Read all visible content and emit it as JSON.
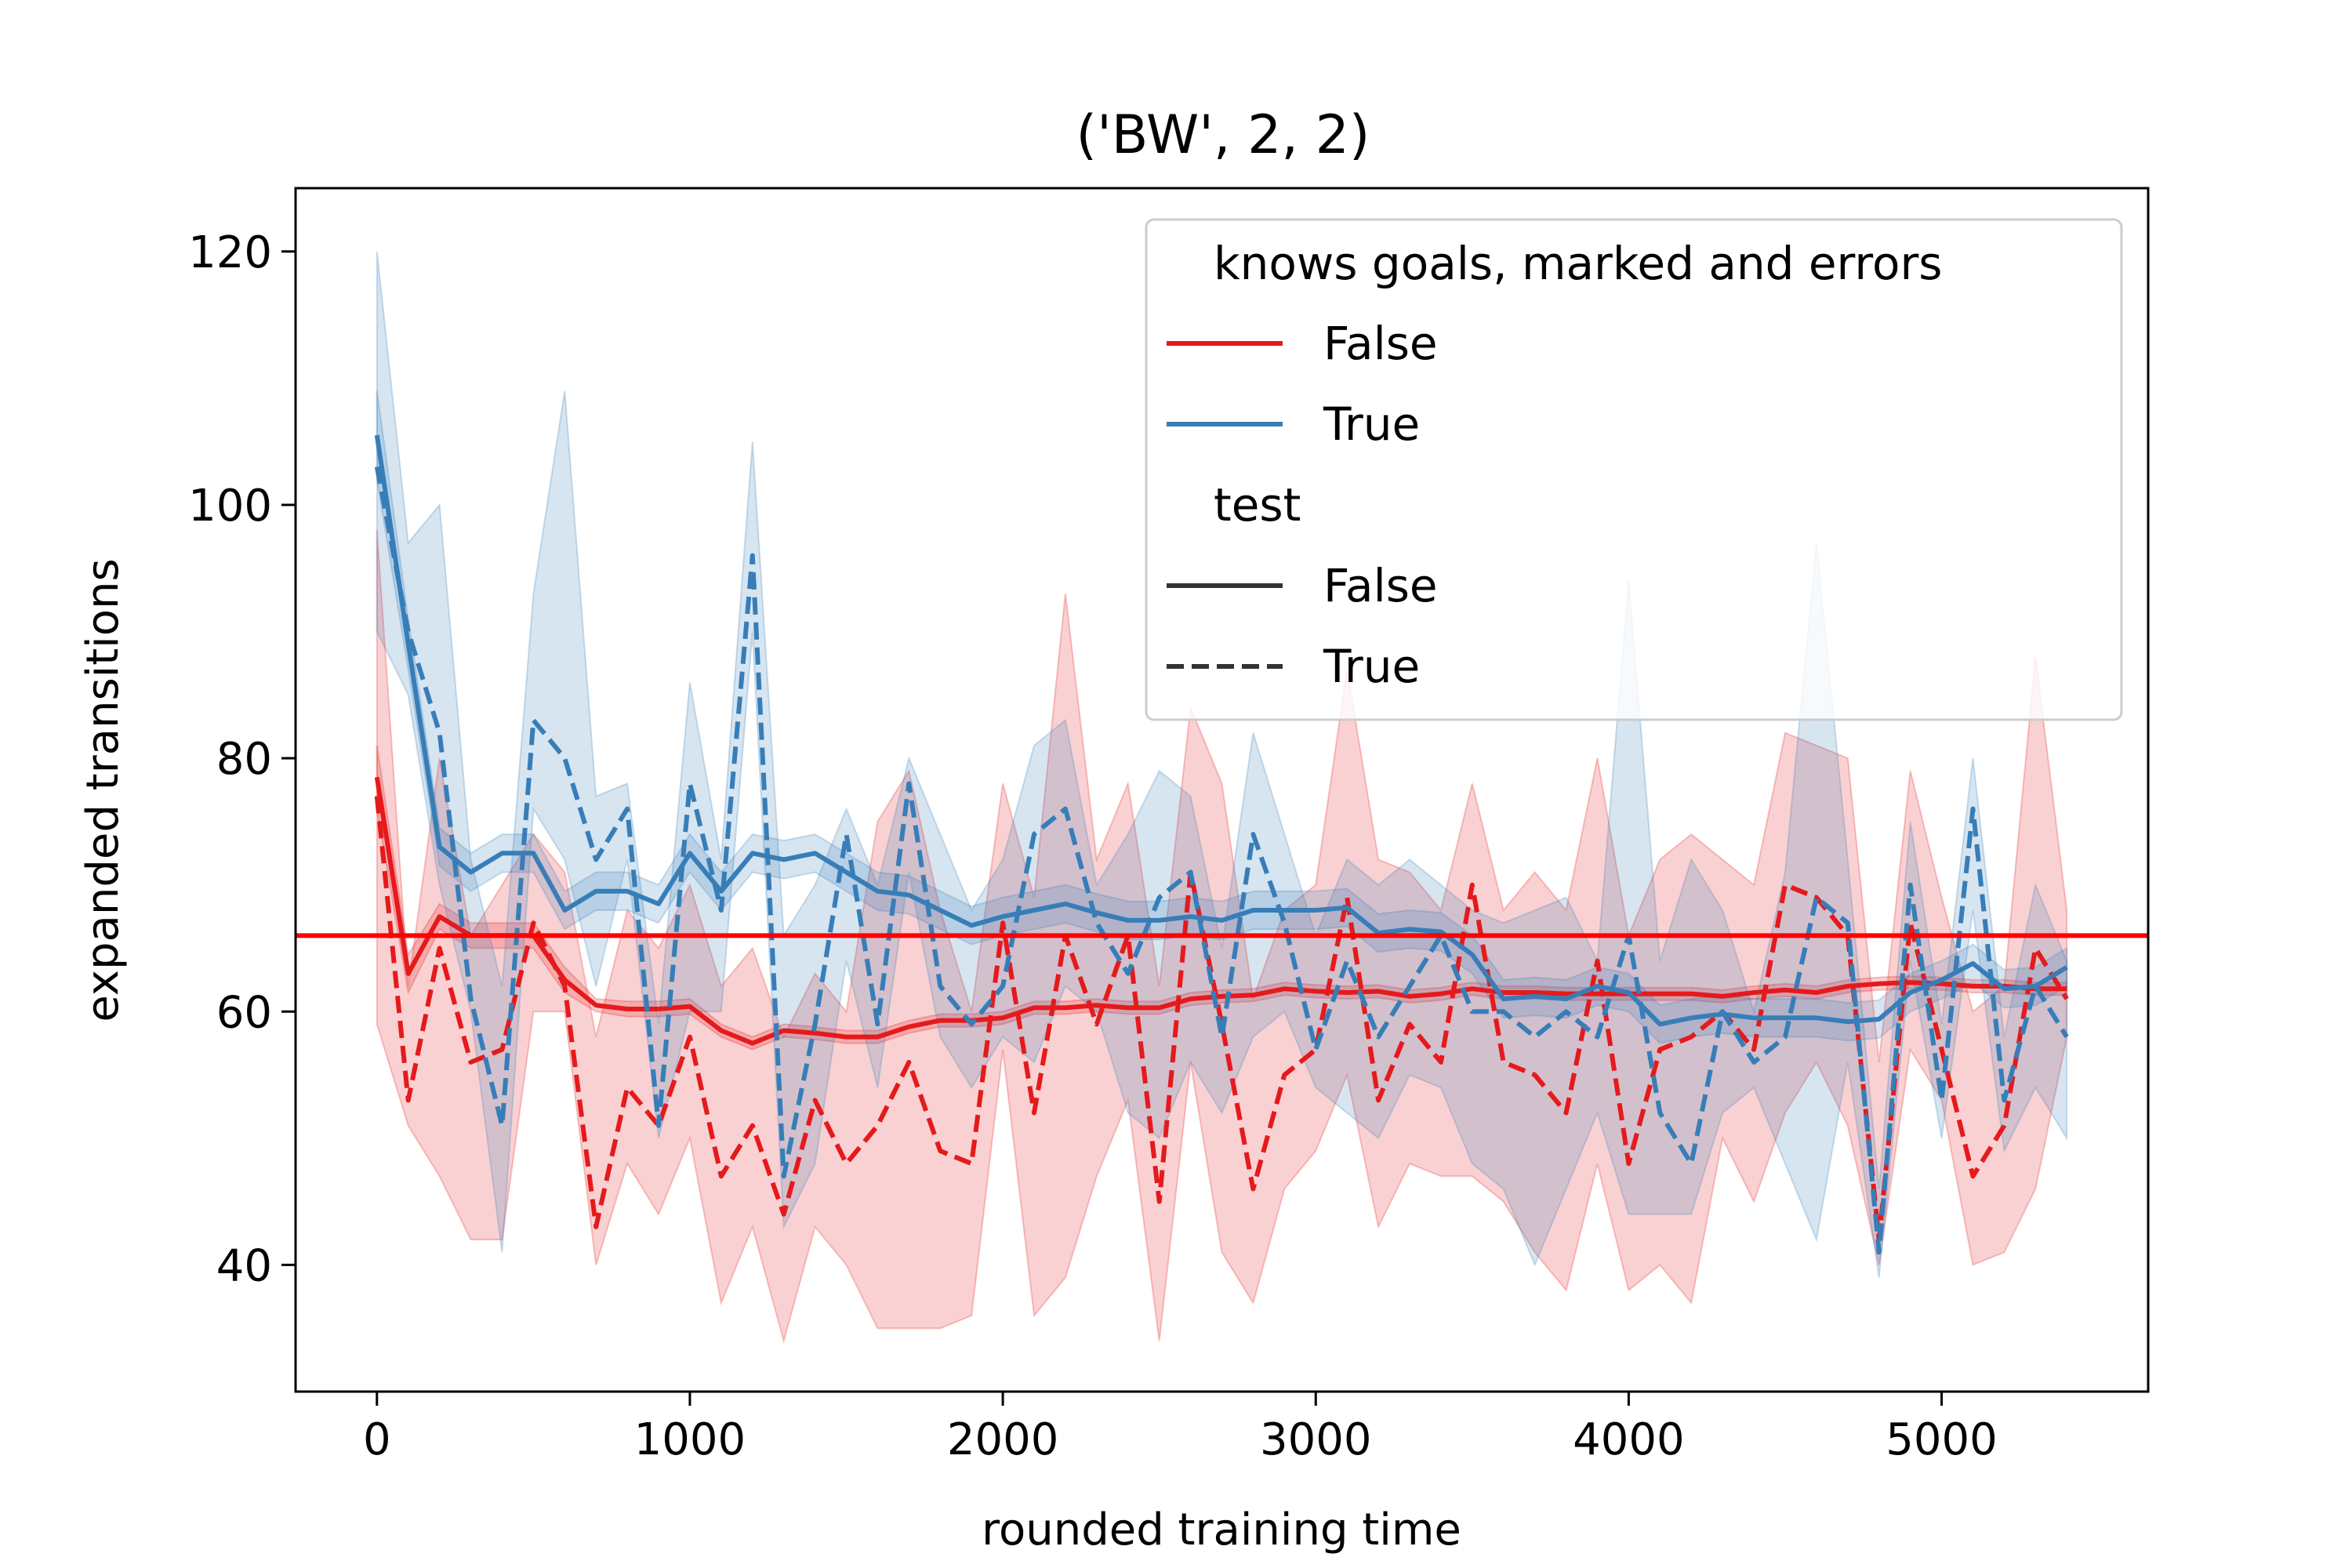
{
  "chart_data": {
    "type": "line",
    "title": "('BW', 2, 2)",
    "xlabel": "rounded training time",
    "ylabel": "expanded transitions",
    "xlim": [
      -260,
      5660
    ],
    "ylim": [
      30,
      125
    ],
    "xticks": [
      0,
      1000,
      2000,
      3000,
      4000,
      5000
    ],
    "yticks": [
      40,
      60,
      80,
      100,
      120
    ],
    "grid": false,
    "legend_placement": "top-right",
    "legend": {
      "hue_title": "knows goals, marked and errors",
      "hue_entries": [
        {
          "label": "False",
          "color": "#e41a1c"
        },
        {
          "label": "True",
          "color": "#377eb8"
        }
      ],
      "style_title": "test",
      "style_entries": [
        {
          "label": "False",
          "dash": "solid"
        },
        {
          "label": "True",
          "dash": "dashed"
        }
      ]
    },
    "reference_line": {
      "y": 66,
      "color": "#ff0000"
    },
    "x": [
      0,
      100,
      200,
      300,
      400,
      500,
      600,
      700,
      800,
      900,
      1000,
      1100,
      1200,
      1300,
      1400,
      1500,
      1600,
      1700,
      1800,
      1900,
      2000,
      2100,
      2200,
      2300,
      2400,
      2500,
      2600,
      2700,
      2800,
      2900,
      3000,
      3100,
      3200,
      3300,
      3400,
      3500,
      3600,
      3700,
      3800,
      3900,
      4000,
      4100,
      4200,
      4300,
      4400,
      4500,
      4600,
      4700,
      4800,
      4900,
      5000,
      5100,
      5200,
      5300,
      5400
    ],
    "series": [
      {
        "knows": "False",
        "test": "False",
        "color": "#e41a1c",
        "dash": "solid",
        "values": [
          78.5,
          63,
          67.5,
          66,
          66,
          66,
          62.5,
          60.5,
          60.2,
          60.2,
          60.4,
          58.5,
          57.5,
          58.5,
          58.3,
          58,
          58,
          58.8,
          59.3,
          59.3,
          59.5,
          60.3,
          60.3,
          60.5,
          60.3,
          60.3,
          61,
          61.2,
          61.3,
          61.8,
          61.6,
          61.5,
          61.6,
          61.2,
          61.4,
          61.8,
          61.5,
          61.5,
          61.4,
          61.4,
          61.4,
          61.4,
          61.4,
          61.2,
          61.5,
          61.7,
          61.5,
          62,
          62.2,
          62.3,
          62.2,
          62,
          62,
          61.8,
          61.8
        ],
        "lower": [
          76,
          61.5,
          66.5,
          65,
          65,
          65,
          61.5,
          60,
          59.6,
          59.6,
          59.8,
          58,
          57,
          58,
          57.8,
          57.5,
          57.5,
          58.3,
          58.8,
          58.8,
          59,
          59.8,
          59.8,
          60,
          59.8,
          59.8,
          60.5,
          60.7,
          60.8,
          61.3,
          61.1,
          61,
          61.1,
          60.7,
          60.9,
          61.3,
          61,
          61,
          60.9,
          60.9,
          60.9,
          60.9,
          60.9,
          60.7,
          61,
          61.2,
          61,
          61.5,
          61.7,
          61.8,
          61.7,
          61.5,
          61.5,
          61.3,
          61.3
        ],
        "upper": [
          81,
          64.5,
          68.5,
          67,
          67,
          67,
          63.5,
          61,
          60.8,
          60.8,
          61,
          59,
          58,
          59,
          58.8,
          58.5,
          58.5,
          59.3,
          59.8,
          59.8,
          60,
          60.8,
          60.8,
          61,
          60.8,
          60.8,
          61.5,
          61.7,
          61.8,
          62.3,
          62.1,
          62,
          62.1,
          61.7,
          61.9,
          62.3,
          62,
          62,
          61.9,
          61.9,
          61.9,
          61.9,
          61.9,
          61.7,
          62,
          62.2,
          62,
          62.5,
          62.7,
          62.8,
          62.7,
          62.5,
          62.5,
          62.3,
          62.3
        ]
      },
      {
        "knows": "False",
        "test": "True",
        "color": "#e41a1c",
        "dash": "dashed",
        "values": [
          77,
          53,
          65,
          56,
          57,
          67,
          62,
          43,
          54,
          51,
          58,
          47,
          51,
          44,
          53,
          48,
          51,
          56,
          49,
          48,
          67,
          52,
          66,
          59,
          66,
          45,
          71,
          59,
          46,
          55,
          57,
          69,
          53,
          59,
          56,
          70,
          56,
          55,
          52,
          64,
          48,
          57,
          58,
          60,
          57,
          70,
          69,
          66,
          42,
          67,
          57,
          47,
          51,
          65,
          61
        ],
        "lower": [
          59,
          51,
          47,
          42,
          42,
          60,
          60,
          40,
          48,
          44,
          50,
          37,
          43,
          34,
          43,
          40,
          35,
          35,
          35,
          36,
          57,
          36,
          39,
          47,
          53,
          34,
          56,
          41,
          37,
          46,
          49,
          55,
          43,
          48,
          47,
          47,
          45,
          41,
          38,
          48,
          38,
          40,
          37,
          50,
          45,
          52,
          56,
          51,
          40,
          57,
          53,
          40,
          41,
          46,
          58
        ],
        "upper": [
          98,
          62,
          80,
          66,
          70,
          74,
          71,
          58,
          68,
          65,
          70,
          62,
          65,
          58,
          63,
          60,
          75,
          79,
          68,
          60,
          78,
          69,
          93,
          72,
          78,
          62,
          84,
          78,
          61,
          68,
          70,
          87,
          72,
          71,
          68,
          78,
          68,
          71,
          68,
          80,
          66,
          72,
          74,
          72,
          70,
          82,
          81,
          80,
          56,
          79,
          69,
          60,
          62,
          88,
          68
        ]
      },
      {
        "knows": "True",
        "test": "False",
        "color": "#377eb8",
        "dash": "solid",
        "values": [
          105.5,
          89,
          73,
          71,
          72.5,
          72.5,
          68,
          69.5,
          69.5,
          68.5,
          72.5,
          69.5,
          72.5,
          72,
          72.5,
          71,
          69.5,
          69.2,
          68,
          66.8,
          67.5,
          68,
          68.5,
          67.8,
          67.2,
          67.2,
          67.5,
          67.2,
          68,
          68,
          68,
          68.2,
          66.2,
          66.5,
          66.3,
          64.5,
          61,
          61.2,
          61,
          62,
          61.5,
          59,
          59.5,
          59.8,
          59.5,
          59.5,
          59.5,
          59.2,
          59.4,
          61.5,
          62.5,
          63.8,
          61.8,
          62,
          63.5
        ],
        "lower": [
          102,
          87,
          71.5,
          69.5,
          71,
          71,
          66.5,
          68,
          68,
          67,
          71,
          68,
          71,
          70.5,
          71,
          69.5,
          68,
          67.7,
          66.5,
          65.3,
          66,
          66.5,
          67,
          66.3,
          65.7,
          65.7,
          66,
          65.7,
          66.5,
          66.5,
          66.5,
          66.7,
          64.7,
          65,
          64.8,
          63,
          59.5,
          59.7,
          59.5,
          60.5,
          60,
          57.5,
          58,
          58.3,
          58,
          58,
          58,
          57.7,
          57.9,
          60,
          61,
          62.3,
          60.3,
          60.5,
          62
        ],
        "upper": [
          109,
          91,
          74.5,
          72.5,
          74,
          74,
          69.5,
          71,
          71,
          70,
          74,
          71,
          74,
          73.5,
          74,
          72.5,
          71,
          70.7,
          69.5,
          68.3,
          69,
          69.5,
          70,
          69.3,
          68.7,
          68.7,
          69,
          68.7,
          69.5,
          69.5,
          69.5,
          69.7,
          67.7,
          68,
          67.8,
          66,
          62.5,
          62.7,
          62.5,
          63.5,
          63,
          60.5,
          61,
          61.3,
          61,
          61,
          61,
          60.7,
          60.9,
          63,
          64,
          65.3,
          63.3,
          63.5,
          65
        ]
      },
      {
        "knows": "True",
        "test": "True",
        "color": "#377eb8",
        "dash": "dashed",
        "values": [
          103,
          90,
          82,
          61,
          51,
          83,
          80,
          72,
          76,
          51,
          78,
          68,
          96,
          47,
          59,
          74,
          59,
          78,
          62,
          59,
          62,
          74,
          76,
          67,
          63,
          69,
          71,
          58,
          74,
          67,
          57,
          64,
          58,
          62,
          66,
          60,
          60,
          58,
          60,
          58,
          66,
          52,
          48,
          60,
          56,
          58,
          69,
          67,
          41,
          70,
          53,
          76,
          53,
          62,
          58
        ],
        "lower": [
          90,
          85,
          70,
          60,
          41,
          76,
          72,
          62,
          72,
          50,
          60,
          60,
          90,
          43,
          48,
          64,
          54,
          71,
          58,
          54,
          58,
          56,
          62,
          60,
          52,
          50,
          56,
          52,
          58,
          60,
          54,
          52,
          50,
          55,
          54,
          48,
          46,
          40,
          46,
          52,
          44,
          44,
          44,
          52,
          54,
          48,
          42,
          56,
          39,
          64,
          50,
          68,
          49,
          54,
          50
        ],
        "upper": [
          120,
          97,
          100,
          72,
          62,
          93,
          109,
          77,
          78,
          59,
          86,
          72,
          105,
          66,
          70,
          76,
          70,
          80,
          74,
          68,
          72,
          81,
          83,
          70,
          74,
          79,
          77,
          65,
          82,
          74,
          66,
          72,
          70,
          72,
          70,
          68,
          67,
          68,
          69,
          64,
          94,
          64,
          72,
          68,
          60,
          71,
          97,
          72,
          46,
          75,
          59,
          80,
          58,
          70,
          64
        ]
      }
    ]
  }
}
